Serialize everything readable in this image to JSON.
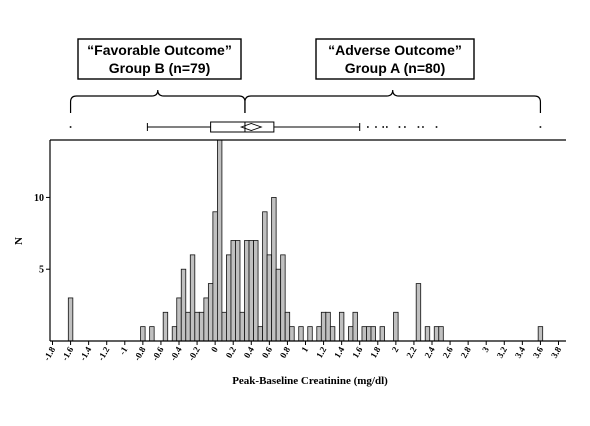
{
  "callouts": {
    "favorable": {
      "line1": "“Favorable Outcome”",
      "line2": "Group B (n=79)"
    },
    "adverse": {
      "line1": "“Adverse Outcome”",
      "line2": "Group A (n=80)"
    }
  },
  "chart_data": {
    "type": "bar",
    "title": "",
    "xlabel": "Peak-Baseline Creatinine (mg/dl)",
    "ylabel": "N",
    "xlim": [
      -1.9,
      3.9
    ],
    "ylim": [
      0,
      14
    ],
    "x_ticks": [
      "-1.8",
      "-1.6",
      "-1.4",
      "-1.2",
      "-1",
      "-0.8",
      "-0.6",
      "-0.4",
      "-0.2",
      "0",
      "0.2",
      "0.4",
      "0.6",
      "0.8",
      "1",
      "1.2",
      "1.4",
      "1.6",
      "1.8",
      "2",
      "2.2",
      "2.4",
      "2.6",
      "2.8",
      "3",
      "3.2",
      "3.4",
      "3.6",
      "3.8"
    ],
    "x_tick_values": [
      -1.8,
      -1.6,
      -1.4,
      -1.2,
      -1,
      -0.8,
      -0.6,
      -0.4,
      -0.2,
      0,
      0.2,
      0.4,
      0.6,
      0.8,
      1,
      1.2,
      1.4,
      1.6,
      1.8,
      2,
      2.2,
      2.4,
      2.6,
      2.8,
      3,
      3.2,
      3.4,
      3.6,
      3.8
    ],
    "y_ticks": [
      "5",
      "10"
    ],
    "y_tick_values": [
      5,
      10
    ],
    "bin_width": 0.05,
    "bars": [
      {
        "x": -1.6,
        "count": 3
      },
      {
        "x": -0.8,
        "count": 1
      },
      {
        "x": -0.7,
        "count": 1
      },
      {
        "x": -0.55,
        "count": 2
      },
      {
        "x": -0.45,
        "count": 1
      },
      {
        "x": -0.4,
        "count": 3
      },
      {
        "x": -0.35,
        "count": 5
      },
      {
        "x": -0.3,
        "count": 2
      },
      {
        "x": -0.25,
        "count": 6
      },
      {
        "x": -0.2,
        "count": 2
      },
      {
        "x": -0.15,
        "count": 2
      },
      {
        "x": -0.1,
        "count": 3
      },
      {
        "x": -0.05,
        "count": 4
      },
      {
        "x": 0.0,
        "count": 9
      },
      {
        "x": 0.05,
        "count": 14
      },
      {
        "x": 0.1,
        "count": 2
      },
      {
        "x": 0.15,
        "count": 6
      },
      {
        "x": 0.2,
        "count": 7
      },
      {
        "x": 0.25,
        "count": 7
      },
      {
        "x": 0.3,
        "count": 2
      },
      {
        "x": 0.35,
        "count": 7
      },
      {
        "x": 0.4,
        "count": 7
      },
      {
        "x": 0.45,
        "count": 7
      },
      {
        "x": 0.5,
        "count": 1
      },
      {
        "x": 0.55,
        "count": 9
      },
      {
        "x": 0.6,
        "count": 6
      },
      {
        "x": 0.65,
        "count": 10
      },
      {
        "x": 0.7,
        "count": 5
      },
      {
        "x": 0.75,
        "count": 6
      },
      {
        "x": 0.8,
        "count": 2
      },
      {
        "x": 0.85,
        "count": 1
      },
      {
        "x": 0.95,
        "count": 1
      },
      {
        "x": 1.05,
        "count": 1
      },
      {
        "x": 1.15,
        "count": 1
      },
      {
        "x": 1.2,
        "count": 2
      },
      {
        "x": 1.25,
        "count": 2
      },
      {
        "x": 1.3,
        "count": 1
      },
      {
        "x": 1.4,
        "count": 2
      },
      {
        "x": 1.5,
        "count": 1
      },
      {
        "x": 1.55,
        "count": 2
      },
      {
        "x": 1.65,
        "count": 1
      },
      {
        "x": 1.7,
        "count": 1
      },
      {
        "x": 1.75,
        "count": 1
      },
      {
        "x": 1.85,
        "count": 1
      },
      {
        "x": 2.0,
        "count": 2
      },
      {
        "x": 2.25,
        "count": 4
      },
      {
        "x": 2.35,
        "count": 1
      },
      {
        "x": 2.45,
        "count": 1
      },
      {
        "x": 2.5,
        "count": 1
      },
      {
        "x": 3.6,
        "count": 1
      }
    ],
    "boxplot": {
      "whisker_low": -0.75,
      "q1": -0.05,
      "median": 0.33,
      "mean": 0.4,
      "q3": 0.65,
      "whisker_high": 1.6,
      "outliers": [
        -1.6,
        1.69,
        1.78,
        1.86,
        1.9,
        2.04,
        2.1,
        2.25,
        2.3,
        2.45,
        3.6
      ]
    },
    "group_split": 0.33,
    "group_left_end": -1.6,
    "group_right_end": 3.6,
    "grid": false,
    "legend": "none"
  }
}
